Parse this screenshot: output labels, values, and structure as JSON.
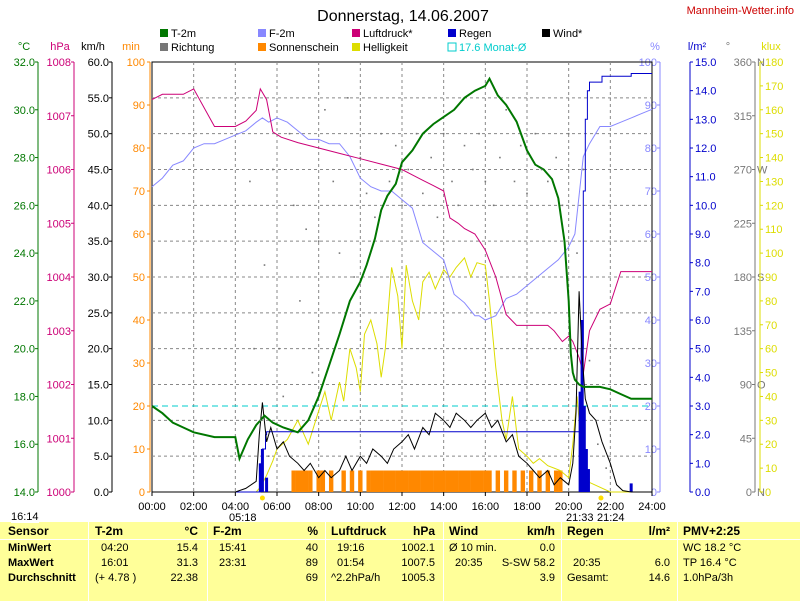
{
  "site": "Mannheim-Wetter.info",
  "colors": {
    "temp": "#007700",
    "humidity": "#8888ff",
    "pressure": "#cc0077",
    "rain": "#0000cc",
    "wind": "#000000",
    "direction": "#777777",
    "sunshine": "#ff8800",
    "brightness": "#dddd00",
    "month_avg": "#00cccc",
    "table_bg": "#ffff99"
  },
  "chart_data": {
    "type": "line",
    "title": "Donnerstag, 14.06.2007",
    "legend": [
      {
        "label": "T-2m",
        "color": "#007700",
        "style": "square-filled"
      },
      {
        "label": "Richtung",
        "color": "#777777",
        "style": "square-filled"
      },
      {
        "label": "F-2m",
        "color": "#8888ff",
        "style": "square-filled"
      },
      {
        "label": "Sonnenschein",
        "color": "#ff8800",
        "style": "square-filled"
      },
      {
        "label": "Luftdruck*",
        "color": "#cc0077",
        "style": "square-filled"
      },
      {
        "label": "Helligkeit",
        "color": "#dddd00",
        "style": "square-filled"
      },
      {
        "label": "Regen",
        "color": "#0000cc",
        "style": "square-filled"
      },
      {
        "label": "17.6 Monat-Ø",
        "color": "#00cccc",
        "style": "square-outline"
      },
      {
        "label": "Wind*",
        "color": "#000000",
        "style": "square-filled"
      }
    ],
    "x_ticks": [
      "00:00",
      "02:00",
      "04:00",
      "06:00",
      "08:00",
      "10:00",
      "12:00",
      "14:00",
      "16:00",
      "18:00",
      "20:00",
      "22:00",
      "24:00"
    ],
    "x_range": [
      0,
      24
    ],
    "axes": {
      "temp": {
        "unit": "°C",
        "ticks": [
          "14.0",
          "16.0",
          "18.0",
          "20.0",
          "22.0",
          "24.0",
          "26.0",
          "28.0",
          "30.0",
          "32.0"
        ],
        "range": [
          14,
          32
        ]
      },
      "pressure": {
        "unit": "hPa",
        "ticks": [
          "1000",
          "1001",
          "1002",
          "1003",
          "1004",
          "1005",
          "1006",
          "1007",
          "1008"
        ],
        "range": [
          1000,
          1008
        ]
      },
      "wind": {
        "unit": "km/h",
        "ticks": [
          "0.0",
          "5.0",
          "10.0",
          "15.0",
          "20.0",
          "25.0",
          "30.0",
          "35.0",
          "40.0",
          "45.0",
          "50.0",
          "55.0",
          "60.0"
        ],
        "range": [
          0,
          60
        ]
      },
      "sunshine": {
        "unit": "min",
        "ticks": [
          "0",
          "10",
          "20",
          "30",
          "40",
          "50",
          "60",
          "70",
          "80",
          "90",
          "100"
        ],
        "range": [
          0,
          100
        ]
      },
      "humidity": {
        "unit": "%",
        "ticks": [
          "0",
          "10",
          "20",
          "30",
          "40",
          "50",
          "60",
          "70",
          "80",
          "90",
          "100"
        ],
        "range": [
          0,
          100
        ]
      },
      "rain": {
        "unit": "l/m²",
        "ticks": [
          "0.0",
          "1.0",
          "2.0",
          "3.0",
          "4.0",
          "5.0",
          "6.0",
          "7.0",
          "8.0",
          "9.0",
          "10.0",
          "11.0",
          "12.0",
          "13.0",
          "14.0",
          "15.0"
        ],
        "range": [
          0,
          15
        ]
      },
      "direction": {
        "unit": "°",
        "ticks": [
          "0",
          "45",
          "90",
          "135",
          "180",
          "225",
          "270",
          "315",
          "360"
        ],
        "compass": [
          "N",
          "",
          "O",
          "",
          "S",
          "",
          "W",
          "",
          "N"
        ],
        "range": [
          0,
          360
        ]
      },
      "brightness": {
        "unit": "klux",
        "ticks": [
          "0",
          "10",
          "20",
          "30",
          "40",
          "50",
          "60",
          "70",
          "80",
          "90",
          "100",
          "110",
          "120",
          "130",
          "140",
          "150",
          "160",
          "170",
          "180"
        ],
        "range": [
          0,
          180
        ]
      }
    },
    "annotations": {
      "sunrise": "05:18",
      "sunset": "21:33",
      "sunset2": "21:24",
      "now": "16:14"
    },
    "month_avg_temp": 17.6,
    "series": [
      {
        "name": "T-2m",
        "axis": "temp",
        "color": "#007700",
        "x": [
          0,
          0.5,
          1,
          1.5,
          2,
          3,
          4,
          4.2,
          4.6,
          5,
          5.4,
          5.8,
          6.3,
          7,
          7.5,
          8,
          8.5,
          9,
          9.5,
          10,
          10.3,
          10.7,
          11,
          11.3,
          11.7,
          12,
          12.5,
          13,
          13.5,
          14,
          14.5,
          15,
          15.5,
          16,
          16.2,
          16.6,
          17,
          17.5,
          18,
          18.4,
          18.8,
          19.2,
          19.5,
          19.8,
          20,
          20.1,
          20.2,
          20.3,
          20.5,
          20.7,
          21,
          21.5,
          22,
          22.5,
          23,
          23.5,
          24
        ],
        "y": [
          17.6,
          17.3,
          16.9,
          16.7,
          16.5,
          16.3,
          16.3,
          15.4,
          16.2,
          16.8,
          17.2,
          16.9,
          16.7,
          16.5,
          17.0,
          18.0,
          19.3,
          20.6,
          22.0,
          22.8,
          23.5,
          24.6,
          25.8,
          26.4,
          26.9,
          27.8,
          28.3,
          29.0,
          29.4,
          29.7,
          30.0,
          30.5,
          30.8,
          31.0,
          31.3,
          30.6,
          30.2,
          29.5,
          28.3,
          27.7,
          27.5,
          27.1,
          26.3,
          24.5,
          22.0,
          19.8,
          19.0,
          18.7,
          18.5,
          18.4,
          18.4,
          18.4,
          18.3,
          18.1,
          17.9,
          17.9,
          17.9
        ]
      },
      {
        "name": "F-2m",
        "axis": "humidity",
        "color": "#8888ff",
        "x": [
          0,
          0.5,
          1,
          1.5,
          2,
          2.5,
          3,
          3.5,
          4,
          4.5,
          5,
          5.3,
          5.6,
          6,
          6.5,
          7,
          7.5,
          8,
          8.5,
          9,
          9.5,
          10,
          10.5,
          11,
          11.5,
          12,
          12.5,
          13,
          13.5,
          14,
          14.5,
          15,
          15.5,
          15.7,
          16,
          16.5,
          17,
          17.5,
          18,
          18.5,
          19,
          19.5,
          20,
          20.3,
          20.7,
          21,
          21.5,
          22,
          22.5,
          23,
          23.5,
          24
        ],
        "y": [
          71,
          73,
          76,
          77,
          80,
          81,
          81,
          82,
          83,
          84,
          86,
          87,
          86,
          87,
          86,
          84,
          82,
          82,
          81,
          81,
          78,
          73,
          71,
          70,
          70,
          68,
          66,
          58,
          56,
          54,
          46,
          44,
          41,
          41,
          40,
          41,
          45,
          46,
          48,
          50,
          52,
          54,
          57,
          60,
          78,
          81,
          85,
          85,
          86,
          87,
          88,
          89
        ]
      },
      {
        "name": "Luftdruck*",
        "axis": "pressure",
        "color": "#cc0077",
        "x": [
          0,
          0.5,
          1,
          1.5,
          2,
          3,
          4,
          4.5,
          5,
          5.2,
          5.5,
          5.8,
          6.2,
          7,
          8,
          9,
          10,
          11,
          12,
          12.5,
          13,
          13.5,
          14,
          14.3,
          14.7,
          15,
          15.5,
          16,
          16.5,
          17,
          17.5,
          18,
          18.5,
          19,
          19.3,
          19.7,
          20,
          20.2,
          20.5,
          20.7,
          21,
          21.5,
          22,
          22.5,
          23,
          23.5,
          24
        ],
        "y": [
          1007.3,
          1007.4,
          1007.4,
          1007.4,
          1007.5,
          1006.8,
          1006.8,
          1006.9,
          1007.1,
          1007.5,
          1007.3,
          1006.7,
          1006.6,
          1006.5,
          1006.4,
          1006.3,
          1006.2,
          1006.1,
          1006.0,
          1005.9,
          1005.8,
          1005.7,
          1005.6,
          1005.1,
          1005.0,
          1004.9,
          1004.8,
          1004.5,
          1004.0,
          1003.3,
          1003.1,
          1003.1,
          1003.1,
          1003.1,
          1003.0,
          1002.8,
          1002.9,
          1002.8,
          1002.5,
          1002.2,
          1003.0,
          1003.4,
          1003.5,
          1004.1,
          1004.1,
          1004.1,
          1004.1
        ]
      },
      {
        "name": "Wind*",
        "axis": "wind",
        "color": "#000000",
        "x": [
          0,
          1,
          2,
          3,
          4,
          4.5,
          5,
          5.15,
          5.3,
          5.5,
          5.7,
          6,
          6.3,
          6.6,
          7,
          7.3,
          7.6,
          8,
          8.3,
          8.6,
          9,
          9.3,
          9.6,
          10,
          10.3,
          10.6,
          11,
          11.3,
          11.6,
          12,
          12.3,
          12.6,
          13,
          13.3,
          13.6,
          14,
          14.3,
          14.6,
          15,
          15.3,
          15.6,
          16,
          16.3,
          16.6,
          17,
          17.3,
          17.6,
          18,
          18.3,
          18.6,
          19,
          19.3,
          19.6,
          20,
          20.2,
          20.35,
          20.5,
          20.65,
          20.8,
          21,
          21.3,
          21.6,
          22,
          22.3,
          22.6,
          23,
          24
        ],
        "y": [
          0,
          0,
          0,
          0,
          0,
          0.5,
          1.5,
          8,
          12.5,
          7,
          9,
          6,
          7,
          5,
          4,
          3,
          4,
          2,
          3,
          2,
          3,
          5,
          3,
          5,
          4,
          6,
          5,
          4,
          6,
          7,
          8,
          6,
          9,
          8,
          11,
          10,
          9,
          11,
          10,
          9,
          10,
          11,
          9,
          10,
          7,
          8,
          5,
          4,
          3,
          2,
          3,
          1,
          2,
          1,
          4,
          11,
          28,
          19,
          13,
          11,
          10,
          7,
          4,
          1,
          0.2,
          0,
          0
        ]
      },
      {
        "name": "Helligkeit",
        "axis": "brightness",
        "color": "#dddd00",
        "x": [
          0,
          5,
          5.2,
          5.5,
          5.8,
          6,
          6.5,
          7,
          7.5,
          8,
          8.3,
          8.6,
          9,
          9.2,
          9.5,
          9.8,
          10,
          10.2,
          10.5,
          10.8,
          11,
          11.2,
          11.5,
          11.8,
          12,
          12.2,
          12.5,
          12.8,
          13,
          13.3,
          13.6,
          14,
          14.3,
          14.6,
          15,
          15.3,
          15.6,
          16,
          16.2,
          16.5,
          16.8,
          17,
          17.3,
          17.6,
          18,
          18.3,
          18.6,
          19,
          19.3,
          19.6,
          20,
          20.2,
          20.4,
          20.6,
          21,
          22,
          24
        ],
        "y": [
          0,
          0,
          2,
          7,
          13,
          18,
          22,
          30,
          20,
          34,
          42,
          30,
          46,
          38,
          60,
          52,
          42,
          66,
          72,
          62,
          48,
          60,
          94,
          82,
          60,
          95,
          80,
          72,
          88,
          92,
          85,
          93,
          90,
          94,
          98,
          90,
          96,
          95,
          80,
          52,
          30,
          22,
          40,
          18,
          15,
          12,
          14,
          11,
          10,
          9,
          6,
          20,
          40,
          20,
          4,
          0,
          0
        ]
      },
      {
        "name": "Richtung",
        "axis": "direction",
        "color": "#777777",
        "x": [
          4.7,
          4.9,
          5.2,
          5.4,
          5.6,
          5.8,
          6.1,
          6.3,
          6.6,
          6.8,
          7.1,
          7.4,
          7.7,
          8.0,
          8.3,
          8.7,
          9.0,
          9.4,
          9.7,
          10.0,
          10.3,
          10.7,
          11.0,
          11.4,
          11.7,
          12.0,
          12.3,
          12.7,
          13.0,
          13.4,
          13.7,
          14.0,
          14.4,
          14.7,
          15.0,
          15.4,
          15.7,
          16.0,
          16.4,
          16.7,
          17.0,
          17.4,
          17.7,
          18.0,
          18.4,
          18.7,
          19.0,
          19.4,
          19.7,
          20.0,
          20.4,
          20.7,
          21.0,
          21.4,
          21.8
        ],
        "y": [
          260,
          120,
          60,
          190,
          30,
          270,
          120,
          80,
          300,
          240,
          160,
          220,
          100,
          210,
          320,
          260,
          200,
          330,
          180,
          280,
          250,
          230,
          300,
          260,
          290,
          240,
          270,
          300,
          250,
          280,
          230,
          300,
          260,
          240,
          290,
          270,
          300,
          260,
          240,
          280,
          320,
          260,
          290,
          250,
          300,
          270,
          260,
          280,
          240,
          300,
          200,
          270,
          110,
          40,
          20
        ]
      }
    ],
    "rain_bars": {
      "axis": "rain",
      "color": "#0000cc",
      "x": [
        5.2,
        5.3,
        5.5,
        20.55,
        20.65,
        20.75,
        20.85,
        20.95,
        23.0
      ],
      "y": [
        1.0,
        1.5,
        0.5,
        3.5,
        6.0,
        3.0,
        1.5,
        0.8,
        0.3
      ]
    },
    "rain_cumulative": {
      "axis": "rain",
      "color": "#0000cc",
      "x": [
        0,
        5.15,
        5.2,
        5.25,
        5.3,
        5.45,
        5.5,
        6,
        20.5,
        20.55,
        20.6,
        20.7,
        20.8,
        20.9,
        21,
        21.6,
        22,
        22.5,
        23,
        24
      ],
      "y": [
        0,
        0,
        0.5,
        1.0,
        1.5,
        2.0,
        2.1,
        2.1,
        2.1,
        3.0,
        5.0,
        10.5,
        13.0,
        14.0,
        14.3,
        14.5,
        14.5,
        14.5,
        14.6,
        14.6
      ]
    },
    "sunshine_bars": {
      "axis": "sunshine",
      "color": "#ff8800",
      "x": [
        6.8,
        7.0,
        7.2,
        7.4,
        7.6,
        8.0,
        8.2,
        8.6,
        9.2,
        9.6,
        10.0,
        10.4,
        10.6,
        10.8,
        11.0,
        11.2,
        11.4,
        11.6,
        11.8,
        12.0,
        12.2,
        12.4,
        12.6,
        12.8,
        13.0,
        13.2,
        13.4,
        13.6,
        13.8,
        14.0,
        14.2,
        14.4,
        14.6,
        14.8,
        15.0,
        15.2,
        15.4,
        15.6,
        15.8,
        16.0,
        16.2,
        16.6,
        17.0,
        17.4,
        17.8,
        18.2,
        18.6,
        19.0,
        19.4,
        19.6
      ],
      "y": [
        5,
        5,
        5,
        5,
        5,
        5,
        5,
        5,
        5,
        5,
        5,
        5,
        5,
        5,
        5,
        5,
        5,
        5,
        5,
        5,
        5,
        5,
        5,
        5,
        5,
        5,
        5,
        5,
        5,
        5,
        5,
        5,
        5,
        5,
        5,
        5,
        5,
        5,
        5,
        5,
        5,
        5,
        5,
        5,
        5,
        5,
        5,
        5,
        5,
        5
      ]
    }
  },
  "table": {
    "headers": [
      {
        "label": "Sensor",
        "unit": ""
      },
      {
        "label": "T-2m",
        "unit": "°C"
      },
      {
        "label": "F-2m",
        "unit": "%"
      },
      {
        "label": "Luftdruck",
        "unit": "hPa"
      },
      {
        "label": "Wind",
        "unit": "km/h"
      },
      {
        "label": "Regen",
        "unit": "l/m²"
      },
      {
        "label": "PMV+2:25",
        "unit": ""
      }
    ],
    "row_labels": [
      "MinWert",
      "MaxWert",
      "Durchschnitt"
    ],
    "temp": [
      [
        "04:20",
        "15.4"
      ],
      [
        "16:01",
        "31.3"
      ],
      [
        "(+ 4.78 )",
        "22.38"
      ]
    ],
    "hum": [
      [
        "15:41",
        "40"
      ],
      [
        "23:31",
        "89"
      ],
      [
        "",
        "69"
      ]
    ],
    "press": [
      [
        "19:16",
        "1002.1"
      ],
      [
        "01:54",
        "1007.5"
      ],
      [
        "^2.2hPa/h",
        "1005.3"
      ]
    ],
    "wind": [
      [
        "Ø 10 min.",
        "0.0"
      ],
      [
        "20:35",
        "S-SW 58.2"
      ],
      [
        "",
        "3.9"
      ]
    ],
    "rain": [
      [
        "",
        ""
      ],
      [
        "20:35",
        "6.0"
      ],
      [
        "Gesamt:",
        "14.6"
      ]
    ],
    "pmv": [
      "WC 18.2 °C",
      "TP 16.4 °C",
      "1.0hPa/3h"
    ]
  }
}
